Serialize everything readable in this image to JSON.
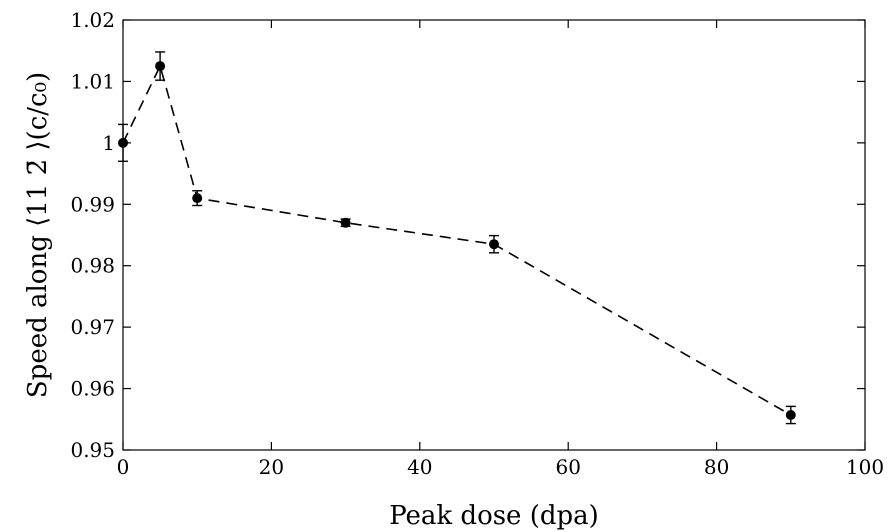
{
  "chart_data": {
    "type": "line",
    "xlabel": "Peak dose (dpa)",
    "ylabel": "Speed along ⟨11 2̄ ⟩(c/c₀)",
    "xlim": [
      0,
      100
    ],
    "ylim": [
      0.95,
      1.02
    ],
    "x_ticks": [
      0,
      20,
      40,
      60,
      80,
      100
    ],
    "x_tick_labels": [
      "0",
      "20",
      "40",
      "60",
      "80",
      "100"
    ],
    "y_ticks": [
      0.95,
      0.96,
      0.97,
      0.98,
      0.99,
      1.0,
      1.01,
      1.02
    ],
    "y_tick_labels": [
      "0.95",
      "0.96",
      "0.97",
      "0.98",
      "0.99",
      "1",
      "1.01",
      "1.02"
    ],
    "grid": false,
    "line_style": "dashed",
    "line_color": "#000000",
    "marker": "filled-circle",
    "series": [
      {
        "x": [
          0,
          5,
          10,
          30,
          50,
          90
        ],
        "y": [
          1.0,
          1.0125,
          0.991,
          0.987,
          0.9835,
          0.9557
        ],
        "err": [
          0.003,
          0.0023,
          0.0012,
          0.0006,
          0.0014,
          0.0014
        ]
      }
    ]
  }
}
